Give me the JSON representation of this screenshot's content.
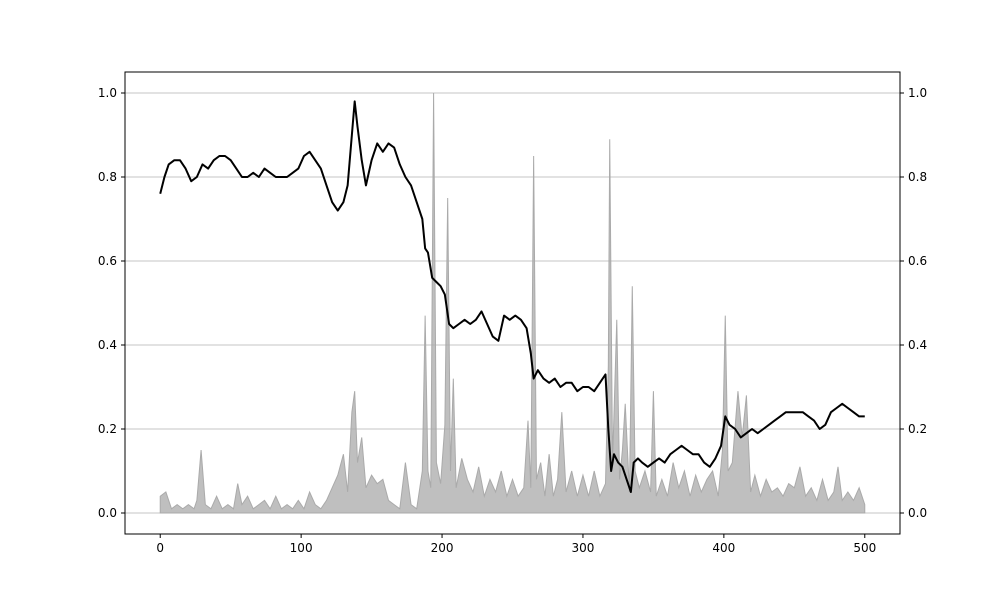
{
  "chart_data": {
    "type": "line",
    "title": "",
    "xlabel": "",
    "ylabel": "",
    "xlim": [
      -25,
      525
    ],
    "ylim": [
      -0.05,
      1.05
    ],
    "grid": "horizontal",
    "x_ticks": [
      0,
      100,
      200,
      300,
      400,
      500
    ],
    "x_tick_labels": [
      "0",
      "100",
      "200",
      "300",
      "400",
      "500"
    ],
    "y_ticks": [
      0.0,
      0.2,
      0.4,
      0.6,
      0.8,
      1.0
    ],
    "y_tick_labels_left": [
      "0.0",
      "0.2",
      "0.4",
      "0.6",
      "0.8",
      "1.0"
    ],
    "y_tick_labels_right": [
      "0.0",
      "0.2",
      "0.4",
      "0.6",
      "0.8",
      "1.0"
    ],
    "series": [
      {
        "kind": "line",
        "color": "#000000",
        "points": [
          [
            0,
            0.76
          ],
          [
            3,
            0.8
          ],
          [
            6,
            0.83
          ],
          [
            10,
            0.84
          ],
          [
            14,
            0.84
          ],
          [
            18,
            0.82
          ],
          [
            22,
            0.79
          ],
          [
            26,
            0.8
          ],
          [
            30,
            0.83
          ],
          [
            34,
            0.82
          ],
          [
            38,
            0.84
          ],
          [
            42,
            0.85
          ],
          [
            46,
            0.85
          ],
          [
            50,
            0.84
          ],
          [
            54,
            0.82
          ],
          [
            58,
            0.8
          ],
          [
            62,
            0.8
          ],
          [
            66,
            0.81
          ],
          [
            70,
            0.8
          ],
          [
            74,
            0.82
          ],
          [
            78,
            0.81
          ],
          [
            82,
            0.8
          ],
          [
            86,
            0.8
          ],
          [
            90,
            0.8
          ],
          [
            94,
            0.81
          ],
          [
            98,
            0.82
          ],
          [
            102,
            0.85
          ],
          [
            106,
            0.86
          ],
          [
            110,
            0.84
          ],
          [
            114,
            0.82
          ],
          [
            118,
            0.78
          ],
          [
            122,
            0.74
          ],
          [
            126,
            0.72
          ],
          [
            130,
            0.74
          ],
          [
            133,
            0.78
          ],
          [
            136,
            0.9
          ],
          [
            138,
            0.98
          ],
          [
            140,
            0.92
          ],
          [
            143,
            0.84
          ],
          [
            146,
            0.78
          ],
          [
            150,
            0.84
          ],
          [
            154,
            0.88
          ],
          [
            158,
            0.86
          ],
          [
            162,
            0.88
          ],
          [
            166,
            0.87
          ],
          [
            170,
            0.83
          ],
          [
            174,
            0.8
          ],
          [
            178,
            0.78
          ],
          [
            182,
            0.74
          ],
          [
            186,
            0.7
          ],
          [
            188,
            0.63
          ],
          [
            190,
            0.62
          ],
          [
            193,
            0.56
          ],
          [
            196,
            0.55
          ],
          [
            199,
            0.54
          ],
          [
            202,
            0.52
          ],
          [
            205,
            0.45
          ],
          [
            208,
            0.44
          ],
          [
            212,
            0.45
          ],
          [
            216,
            0.46
          ],
          [
            220,
            0.45
          ],
          [
            224,
            0.46
          ],
          [
            228,
            0.48
          ],
          [
            232,
            0.45
          ],
          [
            236,
            0.42
          ],
          [
            240,
            0.41
          ],
          [
            244,
            0.47
          ],
          [
            248,
            0.46
          ],
          [
            252,
            0.47
          ],
          [
            256,
            0.46
          ],
          [
            260,
            0.44
          ],
          [
            263,
            0.38
          ],
          [
            265,
            0.32
          ],
          [
            268,
            0.34
          ],
          [
            272,
            0.32
          ],
          [
            276,
            0.31
          ],
          [
            280,
            0.32
          ],
          [
            284,
            0.3
          ],
          [
            288,
            0.31
          ],
          [
            292,
            0.31
          ],
          [
            296,
            0.29
          ],
          [
            300,
            0.3
          ],
          [
            304,
            0.3
          ],
          [
            308,
            0.29
          ],
          [
            312,
            0.31
          ],
          [
            316,
            0.33
          ],
          [
            318,
            0.2
          ],
          [
            320,
            0.1
          ],
          [
            322,
            0.14
          ],
          [
            325,
            0.12
          ],
          [
            328,
            0.11
          ],
          [
            331,
            0.08
          ],
          [
            334,
            0.05
          ],
          [
            336,
            0.12
          ],
          [
            339,
            0.13
          ],
          [
            342,
            0.12
          ],
          [
            346,
            0.11
          ],
          [
            350,
            0.12
          ],
          [
            354,
            0.13
          ],
          [
            358,
            0.12
          ],
          [
            362,
            0.14
          ],
          [
            366,
            0.15
          ],
          [
            370,
            0.16
          ],
          [
            374,
            0.15
          ],
          [
            378,
            0.14
          ],
          [
            382,
            0.14
          ],
          [
            386,
            0.12
          ],
          [
            390,
            0.11
          ],
          [
            394,
            0.13
          ],
          [
            398,
            0.16
          ],
          [
            401,
            0.23
          ],
          [
            404,
            0.21
          ],
          [
            408,
            0.2
          ],
          [
            412,
            0.18
          ],
          [
            416,
            0.19
          ],
          [
            420,
            0.2
          ],
          [
            424,
            0.19
          ],
          [
            428,
            0.2
          ],
          [
            432,
            0.21
          ],
          [
            436,
            0.22
          ],
          [
            440,
            0.23
          ],
          [
            444,
            0.24
          ],
          [
            448,
            0.24
          ],
          [
            452,
            0.24
          ],
          [
            456,
            0.24
          ],
          [
            460,
            0.23
          ],
          [
            464,
            0.22
          ],
          [
            468,
            0.2
          ],
          [
            472,
            0.21
          ],
          [
            476,
            0.24
          ],
          [
            480,
            0.25
          ],
          [
            484,
            0.26
          ],
          [
            488,
            0.25
          ],
          [
            492,
            0.24
          ],
          [
            496,
            0.23
          ],
          [
            500,
            0.23
          ]
        ]
      },
      {
        "kind": "area",
        "color": "#aaaaaa",
        "points": [
          [
            0,
            0.04
          ],
          [
            4,
            0.05
          ],
          [
            8,
            0.01
          ],
          [
            12,
            0.02
          ],
          [
            16,
            0.01
          ],
          [
            20,
            0.02
          ],
          [
            24,
            0.01
          ],
          [
            26,
            0.03
          ],
          [
            29,
            0.15
          ],
          [
            32,
            0.02
          ],
          [
            36,
            0.01
          ],
          [
            40,
            0.04
          ],
          [
            44,
            0.01
          ],
          [
            48,
            0.02
          ],
          [
            52,
            0.01
          ],
          [
            55,
            0.07
          ],
          [
            58,
            0.02
          ],
          [
            62,
            0.04
          ],
          [
            66,
            0.01
          ],
          [
            70,
            0.02
          ],
          [
            74,
            0.03
          ],
          [
            78,
            0.01
          ],
          [
            82,
            0.04
          ],
          [
            86,
            0.01
          ],
          [
            90,
            0.02
          ],
          [
            94,
            0.01
          ],
          [
            98,
            0.03
          ],
          [
            102,
            0.01
          ],
          [
            106,
            0.05
          ],
          [
            110,
            0.02
          ],
          [
            114,
            0.01
          ],
          [
            118,
            0.03
          ],
          [
            122,
            0.06
          ],
          [
            126,
            0.09
          ],
          [
            130,
            0.14
          ],
          [
            133,
            0.05
          ],
          [
            136,
            0.24
          ],
          [
            138,
            0.29
          ],
          [
            140,
            0.12
          ],
          [
            143,
            0.18
          ],
          [
            146,
            0.06
          ],
          [
            150,
            0.09
          ],
          [
            154,
            0.07
          ],
          [
            158,
            0.08
          ],
          [
            162,
            0.03
          ],
          [
            166,
            0.02
          ],
          [
            170,
            0.01
          ],
          [
            174,
            0.12
          ],
          [
            178,
            0.02
          ],
          [
            182,
            0.01
          ],
          [
            186,
            0.1
          ],
          [
            188,
            0.47
          ],
          [
            190,
            0.1
          ],
          [
            192,
            0.06
          ],
          [
            194,
            1.0
          ],
          [
            196,
            0.12
          ],
          [
            199,
            0.07
          ],
          [
            202,
            0.21
          ],
          [
            204,
            0.75
          ],
          [
            206,
            0.1
          ],
          [
            208,
            0.32
          ],
          [
            210,
            0.06
          ],
          [
            214,
            0.13
          ],
          [
            218,
            0.08
          ],
          [
            222,
            0.05
          ],
          [
            226,
            0.11
          ],
          [
            230,
            0.04
          ],
          [
            234,
            0.08
          ],
          [
            238,
            0.05
          ],
          [
            242,
            0.1
          ],
          [
            246,
            0.04
          ],
          [
            250,
            0.08
          ],
          [
            254,
            0.04
          ],
          [
            258,
            0.06
          ],
          [
            261,
            0.22
          ],
          [
            263,
            0.06
          ],
          [
            265,
            0.85
          ],
          [
            267,
            0.08
          ],
          [
            270,
            0.12
          ],
          [
            273,
            0.04
          ],
          [
            276,
            0.14
          ],
          [
            279,
            0.04
          ],
          [
            282,
            0.08
          ],
          [
            285,
            0.24
          ],
          [
            288,
            0.05
          ],
          [
            292,
            0.1
          ],
          [
            296,
            0.04
          ],
          [
            300,
            0.09
          ],
          [
            304,
            0.04
          ],
          [
            308,
            0.1
          ],
          [
            312,
            0.04
          ],
          [
            316,
            0.07
          ],
          [
            318,
            0.35
          ],
          [
            319,
            0.89
          ],
          [
            321,
            0.12
          ],
          [
            324,
            0.46
          ],
          [
            326,
            0.08
          ],
          [
            328,
            0.15
          ],
          [
            330,
            0.26
          ],
          [
            333,
            0.05
          ],
          [
            335,
            0.54
          ],
          [
            337,
            0.1
          ],
          [
            340,
            0.06
          ],
          [
            344,
            0.1
          ],
          [
            348,
            0.05
          ],
          [
            350,
            0.29
          ],
          [
            352,
            0.04
          ],
          [
            356,
            0.08
          ],
          [
            360,
            0.04
          ],
          [
            364,
            0.12
          ],
          [
            368,
            0.06
          ],
          [
            372,
            0.1
          ],
          [
            376,
            0.04
          ],
          [
            380,
            0.09
          ],
          [
            384,
            0.05
          ],
          [
            388,
            0.08
          ],
          [
            392,
            0.1
          ],
          [
            396,
            0.04
          ],
          [
            399,
            0.15
          ],
          [
            401,
            0.47
          ],
          [
            403,
            0.1
          ],
          [
            406,
            0.12
          ],
          [
            410,
            0.29
          ],
          [
            413,
            0.18
          ],
          [
            416,
            0.28
          ],
          [
            419,
            0.05
          ],
          [
            422,
            0.09
          ],
          [
            426,
            0.04
          ],
          [
            430,
            0.08
          ],
          [
            434,
            0.05
          ],
          [
            438,
            0.06
          ],
          [
            442,
            0.04
          ],
          [
            446,
            0.07
          ],
          [
            450,
            0.06
          ],
          [
            454,
            0.11
          ],
          [
            458,
            0.04
          ],
          [
            462,
            0.06
          ],
          [
            466,
            0.03
          ],
          [
            470,
            0.08
          ],
          [
            474,
            0.03
          ],
          [
            478,
            0.05
          ],
          [
            481,
            0.11
          ],
          [
            484,
            0.03
          ],
          [
            488,
            0.05
          ],
          [
            492,
            0.03
          ],
          [
            496,
            0.06
          ],
          [
            498,
            0.04
          ],
          [
            500,
            0.02
          ]
        ]
      }
    ]
  }
}
